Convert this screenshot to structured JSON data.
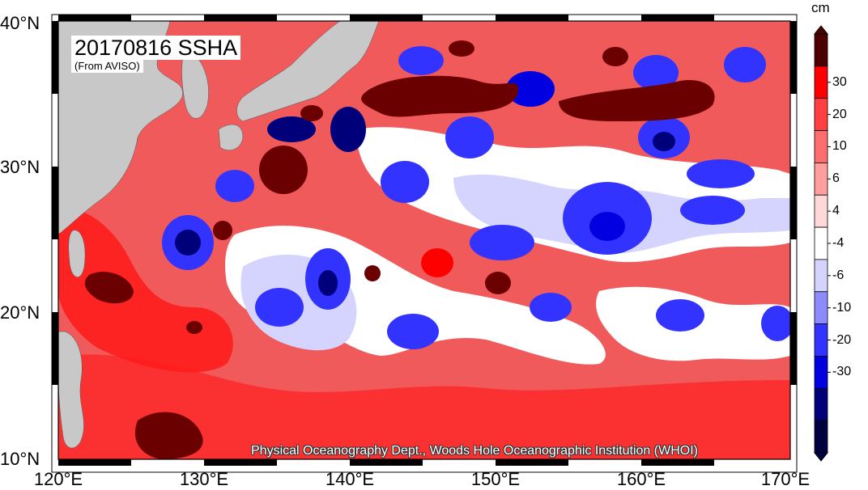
{
  "title": "20170816 SSHA",
  "subtitle": "(From AVISO)",
  "credit": "Physical Oceanography Dept., Woods Hole Oceanographic Institution (WHOI)",
  "colorbar": {
    "unit": "cm",
    "tick_labels": [
      "30",
      "20",
      "10",
      "6",
      "4",
      "-4",
      "-6",
      "-10",
      "-20",
      "-30"
    ],
    "colors": [
      "#4d0000",
      "#ff0000",
      "#ff4040",
      "#ff6e6e",
      "#ff9e9e",
      "#ffd9d9",
      "#ffffff",
      "#d4d4ff",
      "#8c8cff",
      "#3333ff",
      "#0000e0",
      "#00007a",
      "#000040"
    ]
  },
  "map": {
    "latitude_labels": [
      "40°N",
      "30°N",
      "20°N",
      "10°N"
    ],
    "longitude_labels": [
      "120°E",
      "130°E",
      "140°E",
      "150°E",
      "160°E",
      "170°E"
    ],
    "lat_range": [
      10,
      40
    ],
    "lon_range": [
      120,
      170
    ],
    "land_color": "#c8c8c8",
    "background_color": "#f05a5a"
  }
}
